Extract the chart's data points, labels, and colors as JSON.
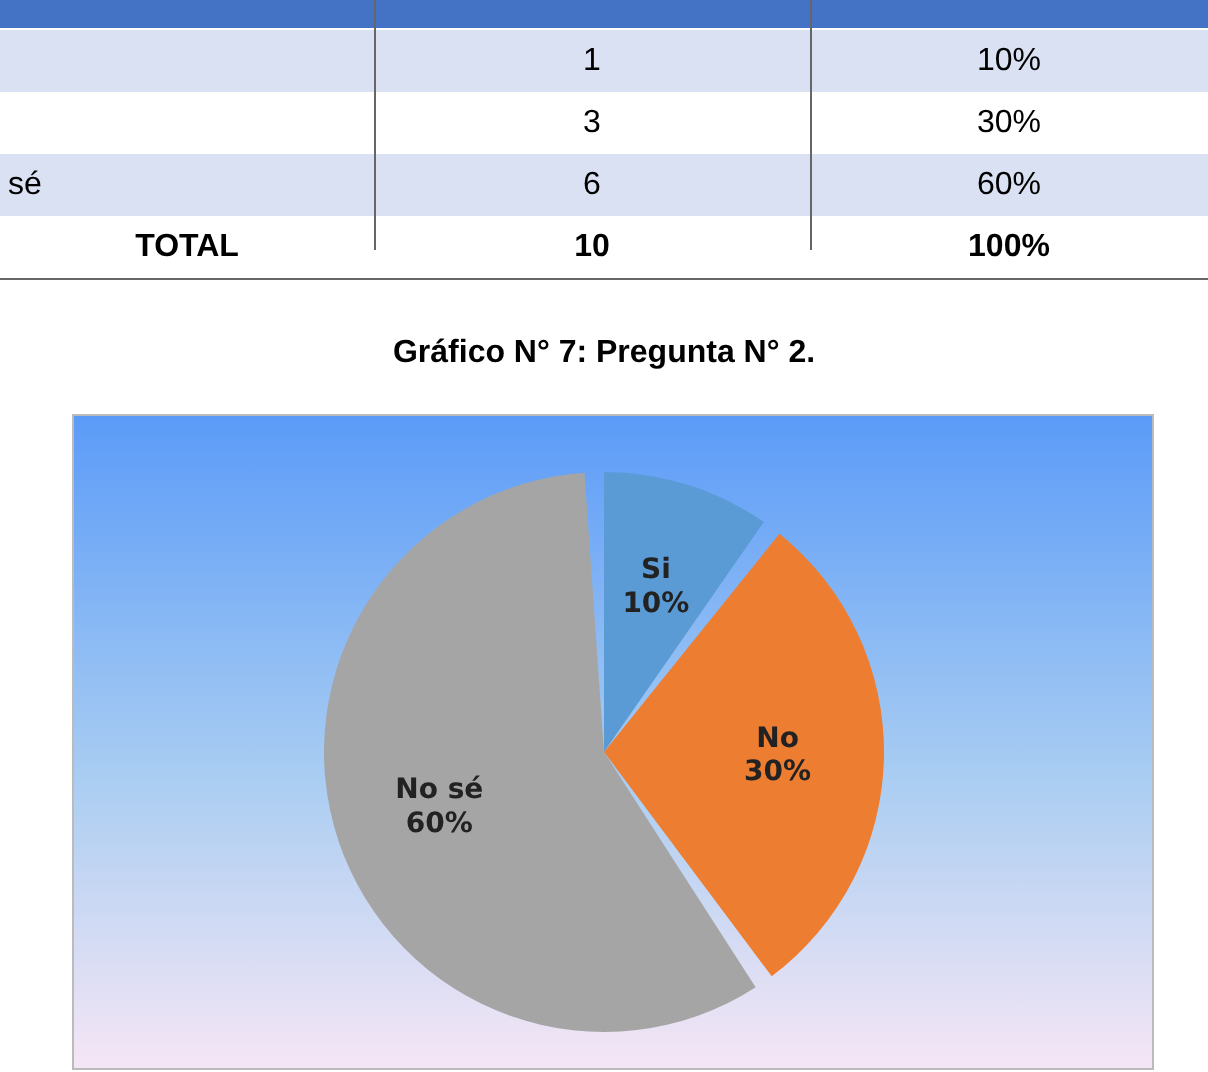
{
  "chart_data": {
    "type": "pie",
    "title": "Gráfico N° 7: Pregunta N° 2.",
    "categories": [
      "Si",
      "No",
      "No sé"
    ],
    "values": [
      10,
      30,
      60
    ],
    "value_labels": [
      "10%",
      "30%",
      "60%"
    ],
    "colors": [
      "#5b9bd5",
      "#ed7d31",
      "#a5a5a5"
    ],
    "annotations": [
      "1",
      "10%",
      "3",
      "30%",
      "sé",
      "6",
      "60%",
      "TOTAL",
      "10",
      "100%"
    ]
  }
}
